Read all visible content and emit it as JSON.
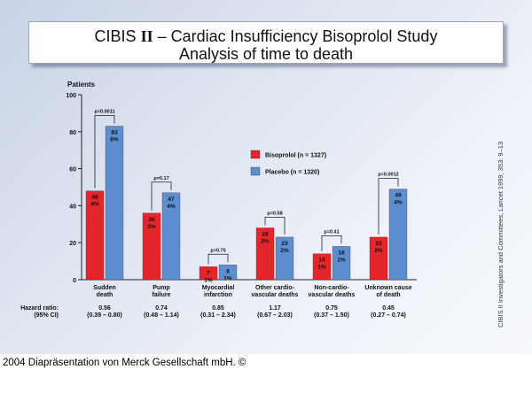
{
  "slide": {
    "title_prefix": "CIBIS",
    "title_roman": "II",
    "title_dash": "–",
    "title_rest": "Cardiac Insufficiency Bisoprolol Study",
    "subtitle": "Analysis of time to death",
    "citation": "CIBIS II Investigators and Committees, Lancet 1999; 353: 9–13",
    "footer": "2004 Diapräsentation von Merck Gesellschaft mbH. ©"
  },
  "chart_data": {
    "type": "bar",
    "ylabel": "Patients",
    "ylim": [
      0,
      100
    ],
    "yticks": [
      0,
      20,
      40,
      60,
      80,
      100
    ],
    "categories": [
      [
        "Sudden",
        "death"
      ],
      [
        "Pump",
        "failure"
      ],
      [
        "Myocardial",
        "infarction"
      ],
      [
        "Other cardio-",
        "vascular deaths"
      ],
      [
        "Non-cardio-",
        "vascular deaths"
      ],
      [
        "Unknown cause",
        "of death"
      ]
    ],
    "series": [
      {
        "name": "Bisoprolol (n = 1327)",
        "color": "#e3262b",
        "values": [
          48,
          36,
          7,
          28,
          14,
          23
        ],
        "pct": [
          "4%",
          "3%",
          "1%",
          "2%",
          "1%",
          "2%"
        ]
      },
      {
        "name": "Placebo (n = 1320)",
        "color": "#5b8fcf",
        "values": [
          83,
          47,
          8,
          23,
          18,
          49
        ],
        "pct": [
          "6%",
          "4%",
          "1%",
          "2%",
          "1%",
          "4%"
        ]
      }
    ],
    "pvalues": [
      "p=0.0011",
      "p=0.17",
      "p=0.75",
      "p=0.58",
      "p=0.41",
      "p=0.0012"
    ],
    "hazard_label": [
      "Hazard ratio:",
      "(95% CI)"
    ],
    "hazard_ratio": [
      "0.56",
      "0.74",
      "0.85",
      "1.17",
      "0.75",
      "0.45"
    ],
    "hazard_ci": [
      "(0.39 – 0.80)",
      "(0.48 – 1.14)",
      "(0.31 – 2.34)",
      "(0.67 – 2.03)",
      "(0.37 – 1.50)",
      "(0.27 – 0.74)"
    ],
    "legend_position": "right"
  }
}
